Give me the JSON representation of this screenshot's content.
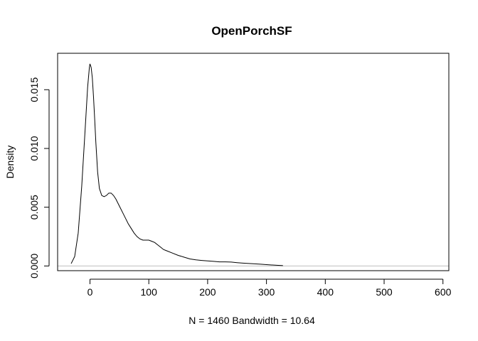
{
  "chart_data": {
    "type": "line",
    "title": "OpenPorchSF",
    "xlabel": "N = 1460   Bandwidth = 10.64",
    "ylabel": "Density",
    "xlim": [
      -55,
      610
    ],
    "ylim": [
      -0.0004,
      0.0181
    ],
    "x_ticks": [
      0,
      100,
      200,
      300,
      400,
      500,
      600
    ],
    "x_tick_labels": [
      "0",
      "100",
      "200",
      "300",
      "400",
      "500",
      "600"
    ],
    "y_ticks": [
      0.0,
      0.005,
      0.01,
      0.015
    ],
    "y_tick_labels": [
      "0.000",
      "0.005",
      "0.010",
      "0.015"
    ],
    "grid": false,
    "baseline": 0,
    "series": [
      {
        "color": "#000000",
        "x": [
          -32,
          -26,
          -20,
          -14,
          -8,
          -4,
          -1,
          0,
          2,
          4,
          6,
          8,
          10,
          13,
          16,
          20,
          24,
          28,
          32,
          36,
          40,
          44,
          48,
          52,
          56,
          60,
          65,
          70,
          75,
          80,
          85,
          90,
          95,
          100,
          105,
          110,
          115,
          120,
          125,
          130,
          140,
          150,
          160,
          170,
          180,
          190,
          200,
          210,
          220,
          230,
          240,
          250,
          260,
          270,
          280,
          290,
          300,
          310,
          320,
          328
        ],
        "y": [
          0.0002,
          0.0008,
          0.0028,
          0.0068,
          0.0118,
          0.0152,
          0.0169,
          0.0172,
          0.0169,
          0.016,
          0.0144,
          0.0125,
          0.0105,
          0.008,
          0.0066,
          0.006,
          0.0059,
          0.006,
          0.0062,
          0.0062,
          0.006,
          0.0057,
          0.0053,
          0.0049,
          0.0045,
          0.0041,
          0.0036,
          0.0032,
          0.0028,
          0.0025,
          0.0023,
          0.0022,
          0.0022,
          0.0022,
          0.0021,
          0.002,
          0.0018,
          0.0016,
          0.0014,
          0.0013,
          0.0011,
          0.0009,
          0.00075,
          0.0006,
          0.00052,
          0.00047,
          0.00043,
          0.00039,
          0.00035,
          0.00035,
          0.00033,
          0.00028,
          0.00024,
          0.00021,
          0.00018,
          0.00015,
          0.00011,
          8e-05,
          5e-05,
          3e-05
        ]
      }
    ]
  }
}
